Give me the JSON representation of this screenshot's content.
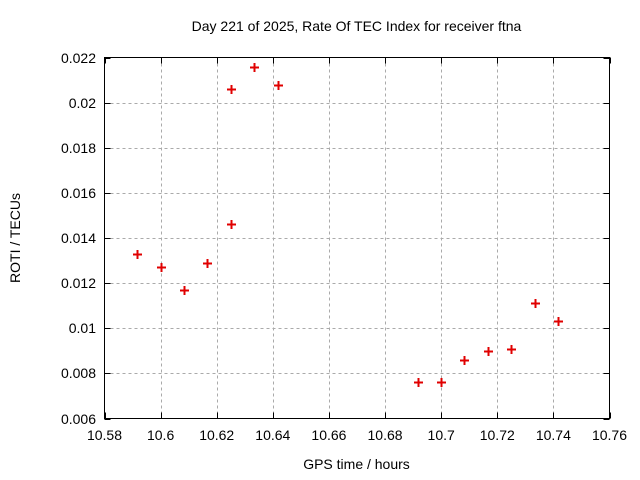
{
  "chart_data": {
    "type": "scatter",
    "title": "Day 221 of 2025, Rate Of TEC Index for receiver ftna",
    "xlabel": "GPS time / hours",
    "ylabel": "ROTI / TECUs",
    "xlim": [
      10.58,
      10.76
    ],
    "ylim": [
      0.006,
      0.022
    ],
    "x_ticks": [
      10.58,
      10.6,
      10.62,
      10.64,
      10.66,
      10.68,
      10.7,
      10.72,
      10.74,
      10.76
    ],
    "x_tick_labels": [
      "10.58",
      "10.6",
      "10.62",
      "10.64",
      "10.66",
      "10.68",
      "10.7",
      "10.72",
      "10.74",
      "10.76"
    ],
    "y_ticks": [
      0.006,
      0.008,
      0.01,
      0.012,
      0.014,
      0.016,
      0.018,
      0.02,
      0.022
    ],
    "y_tick_labels": [
      "0.006",
      "0.008",
      "0.01",
      "0.012",
      "0.014",
      "0.016",
      "0.018",
      "0.02",
      "0.022"
    ],
    "grid": true,
    "legend": "none",
    "marker": "plus",
    "colors": {
      "marker": "#e00000",
      "grid": "#aaaaaa",
      "border": "#000000",
      "background": "#ffffff",
      "text": "#000000"
    },
    "series": [
      {
        "name": "ROTI",
        "points": [
          [
            10.5917,
            0.0133
          ],
          [
            10.6,
            0.0127
          ],
          [
            10.6083,
            0.0117
          ],
          [
            10.6167,
            0.0129
          ],
          [
            10.625,
            0.0146
          ],
          [
            10.625,
            0.0206
          ],
          [
            10.6333,
            0.0216
          ],
          [
            10.6417,
            0.0208
          ],
          [
            10.6917,
            0.0076
          ],
          [
            10.7,
            0.0076
          ],
          [
            10.7083,
            0.0086
          ],
          [
            10.7167,
            0.009
          ],
          [
            10.725,
            0.0091
          ],
          [
            10.7333,
            0.0111
          ],
          [
            10.7417,
            0.0103
          ]
        ]
      }
    ]
  }
}
